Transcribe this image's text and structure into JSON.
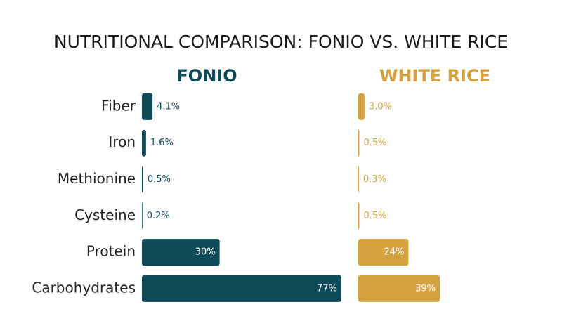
{
  "chart_data": {
    "type": "bar",
    "title": "NUTRITIONAL COMPARISON: FONIO VS. WHITE RICE",
    "categories": [
      "Fiber",
      "Iron",
      "Methionine",
      "Cysteine",
      "Protein",
      "Carbohydrates"
    ],
    "series": [
      {
        "name": "FONIO",
        "color": "#0e4a58",
        "values": [
          4.1,
          1.6,
          0.5,
          0.2,
          30,
          77
        ],
        "value_labels": [
          "4.1%",
          "1.6%",
          "0.5%",
          "0.2%",
          "30%",
          "77%"
        ]
      },
      {
        "name": "WHITE RICE",
        "color": "#d4a23f",
        "values": [
          3.0,
          0.5,
          0.3,
          0.5,
          24,
          39
        ],
        "value_labels": [
          "3.0%",
          "0.5%",
          "0.3%",
          "0.5%",
          "24%",
          "39%"
        ]
      }
    ],
    "xlim": [
      0,
      80
    ]
  }
}
